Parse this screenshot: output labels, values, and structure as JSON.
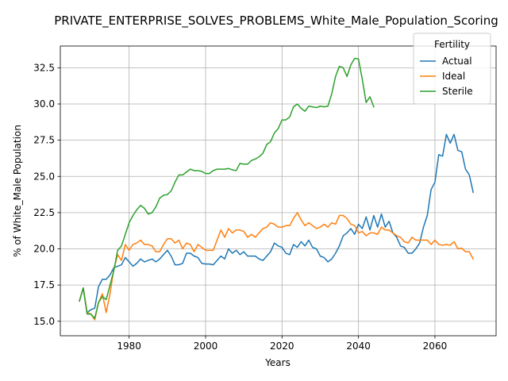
{
  "chart_data": {
    "type": "line",
    "title": "PRIVATE_ENTERPRISE_SOLVES_PROBLEMS_White_Male_Population_Scoring",
    "xlabel": "Years",
    "ylabel": "% of White_Male Population",
    "xlim": [
      1962,
      2076
    ],
    "ylim": [
      14.0,
      34.0
    ],
    "xticks": [
      1980,
      2000,
      2020,
      2040,
      2060
    ],
    "yticks": [
      15.0,
      17.5,
      20.0,
      22.5,
      25.0,
      27.5,
      30.0,
      32.5
    ],
    "ytick_labels": [
      "15.0",
      "17.5",
      "20.0",
      "22.5",
      "25.0",
      "27.5",
      "30.0",
      "32.5"
    ],
    "grid": true,
    "legend": {
      "title": "Fertility",
      "placement": "upper right"
    },
    "series": [
      {
        "name": "Actual",
        "color": "#1f77b4",
        "x": [
          1967,
          1968,
          1969,
          1970,
          1971,
          1972,
          1973,
          1974,
          1975,
          1976,
          1977,
          1978,
          1979,
          1980,
          1981,
          1982,
          1983,
          1984,
          1985,
          1986,
          1987,
          1988,
          1989,
          1990,
          1991,
          1992,
          1993,
          1994,
          1995,
          1996,
          1997,
          1998,
          1999,
          2000,
          2001,
          2002,
          2003,
          2004,
          2005,
          2006,
          2007,
          2008,
          2009,
          2010,
          2011,
          2012,
          2013,
          2014,
          2015,
          2016,
          2017,
          2018,
          2019,
          2020,
          2021,
          2022,
          2023,
          2024,
          2025,
          2026,
          2027,
          2028,
          2029,
          2030,
          2031,
          2032,
          2033,
          2034,
          2035,
          2036,
          2037,
          2038,
          2039,
          2040,
          2041,
          2042,
          2043,
          2044,
          2045,
          2046,
          2047,
          2048,
          2049,
          2050,
          2051,
          2052,
          2053,
          2054,
          2055,
          2056,
          2057,
          2058,
          2059,
          2060,
          2061,
          2062,
          2063,
          2064,
          2065,
          2066,
          2067,
          2068,
          2069,
          2070
        ],
        "values": [
          16.4,
          17.3,
          15.6,
          15.8,
          15.9,
          17.4,
          17.9,
          17.9,
          18.2,
          18.7,
          18.8,
          18.9,
          19.4,
          19.1,
          18.8,
          19.0,
          19.3,
          19.1,
          19.2,
          19.3,
          19.1,
          19.3,
          19.6,
          19.9,
          19.5,
          18.9,
          18.9,
          19.0,
          19.7,
          19.7,
          19.5,
          19.4,
          19.0,
          18.95,
          18.95,
          18.9,
          19.2,
          19.5,
          19.3,
          20.0,
          19.7,
          19.9,
          19.6,
          19.8,
          19.5,
          19.5,
          19.5,
          19.3,
          19.2,
          19.5,
          19.8,
          20.4,
          20.2,
          20.1,
          19.7,
          19.6,
          20.3,
          20.1,
          20.5,
          20.2,
          20.6,
          20.1,
          20.0,
          19.5,
          19.4,
          19.1,
          19.3,
          19.7,
          20.2,
          20.9,
          21.1,
          21.4,
          21.0,
          21.7,
          21.4,
          22.2,
          21.3,
          22.3,
          21.5,
          22.4,
          21.5,
          21.9,
          21.1,
          20.8,
          20.2,
          20.1,
          19.7,
          19.7,
          20.0,
          20.4,
          21.5,
          22.3,
          24.1,
          24.6,
          26.5,
          26.4,
          27.9,
          27.3,
          27.9,
          26.8,
          26.7,
          25.5,
          25.1,
          23.9
        ]
      },
      {
        "name": "Ideal",
        "color": "#ff7f0e",
        "x": [
          1967,
          1968,
          1969,
          1970,
          1971,
          1972,
          1973,
          1974,
          1975,
          1976,
          1977,
          1978,
          1979,
          1980,
          1981,
          1982,
          1983,
          1984,
          1985,
          1986,
          1987,
          1988,
          1989,
          1990,
          1991,
          1992,
          1993,
          1994,
          1995,
          1996,
          1997,
          1998,
          1999,
          2000,
          2001,
          2002,
          2003,
          2004,
          2005,
          2006,
          2007,
          2008,
          2009,
          2010,
          2011,
          2012,
          2013,
          2014,
          2015,
          2016,
          2017,
          2018,
          2019,
          2020,
          2021,
          2022,
          2023,
          2024,
          2025,
          2026,
          2027,
          2028,
          2029,
          2030,
          2031,
          2032,
          2033,
          2034,
          2035,
          2036,
          2037,
          2038,
          2039,
          2040,
          2041,
          2042,
          2043,
          2044,
          2045,
          2046,
          2047,
          2048,
          2049,
          2050,
          2051,
          2052,
          2053,
          2054,
          2055,
          2056,
          2057,
          2058,
          2059,
          2060,
          2061,
          2062,
          2063,
          2064,
          2065,
          2066,
          2067,
          2068,
          2069,
          2070
        ],
        "values": [
          16.4,
          17.3,
          15.6,
          15.5,
          15.1,
          16.3,
          16.9,
          15.6,
          16.9,
          18.6,
          19.6,
          19.2,
          20.3,
          19.9,
          20.3,
          20.4,
          20.6,
          20.3,
          20.3,
          20.2,
          19.8,
          19.8,
          20.3,
          20.7,
          20.7,
          20.4,
          20.6,
          20.0,
          20.4,
          20.3,
          19.8,
          20.3,
          20.1,
          19.9,
          19.9,
          19.9,
          20.6,
          21.3,
          20.8,
          21.4,
          21.1,
          21.3,
          21.3,
          21.2,
          20.8,
          21.0,
          20.8,
          21.1,
          21.4,
          21.5,
          21.8,
          21.7,
          21.5,
          21.5,
          21.6,
          21.6,
          22.1,
          22.5,
          22.0,
          21.6,
          21.8,
          21.6,
          21.4,
          21.5,
          21.7,
          21.5,
          21.8,
          21.7,
          22.3,
          22.3,
          22.1,
          21.7,
          21.6,
          21.1,
          21.2,
          20.9,
          21.1,
          21.1,
          21.0,
          21.5,
          21.3,
          21.3,
          21.1,
          20.9,
          20.8,
          20.5,
          20.4,
          20.8,
          20.6,
          20.6,
          20.6,
          20.6,
          20.3,
          20.6,
          20.3,
          20.25,
          20.3,
          20.25,
          20.5,
          20.0,
          20.05,
          19.8,
          19.8,
          19.3
        ]
      },
      {
        "name": "Sterile",
        "color": "#2ca02c",
        "x": [
          1967,
          1968,
          1969,
          1970,
          1971,
          1972,
          1973,
          1974,
          1975,
          1976,
          1977,
          1978,
          1979,
          1980,
          1981,
          1982,
          1983,
          1984,
          1985,
          1986,
          1987,
          1988,
          1989,
          1990,
          1991,
          1992,
          1993,
          1994,
          1995,
          1996,
          1997,
          1998,
          1999,
          2000,
          2001,
          2002,
          2003,
          2004,
          2005,
          2006,
          2007,
          2008,
          2009,
          2010,
          2011,
          2012,
          2013,
          2014,
          2015,
          2016,
          2017,
          2018,
          2019,
          2020,
          2021,
          2022,
          2023,
          2024,
          2025,
          2026,
          2027,
          2028,
          2029,
          2030,
          2031,
          2032,
          2033,
          2034,
          2035,
          2036,
          2037,
          2038,
          2039,
          2040,
          2041,
          2042,
          2043,
          2044
        ],
        "values": [
          16.4,
          17.3,
          15.5,
          15.5,
          15.2,
          16.3,
          16.7,
          16.5,
          17.5,
          18.5,
          19.9,
          20.2,
          21.0,
          21.8,
          22.3,
          22.7,
          23.0,
          22.8,
          22.4,
          22.5,
          22.9,
          23.5,
          23.7,
          23.75,
          24.0,
          24.6,
          25.1,
          25.1,
          25.3,
          25.5,
          25.4,
          25.4,
          25.35,
          25.2,
          25.2,
          25.4,
          25.5,
          25.5,
          25.5,
          25.55,
          25.45,
          25.4,
          25.9,
          25.85,
          25.85,
          26.1,
          26.2,
          26.35,
          26.6,
          27.2,
          27.4,
          28.0,
          28.3,
          28.9,
          28.9,
          29.1,
          29.8,
          30.0,
          29.7,
          29.5,
          29.85,
          29.8,
          29.75,
          29.85,
          29.8,
          29.85,
          30.7,
          31.9,
          32.6,
          32.5,
          31.9,
          32.7,
          33.15,
          33.1,
          31.7,
          30.1,
          30.5,
          29.8
        ]
      }
    ]
  }
}
